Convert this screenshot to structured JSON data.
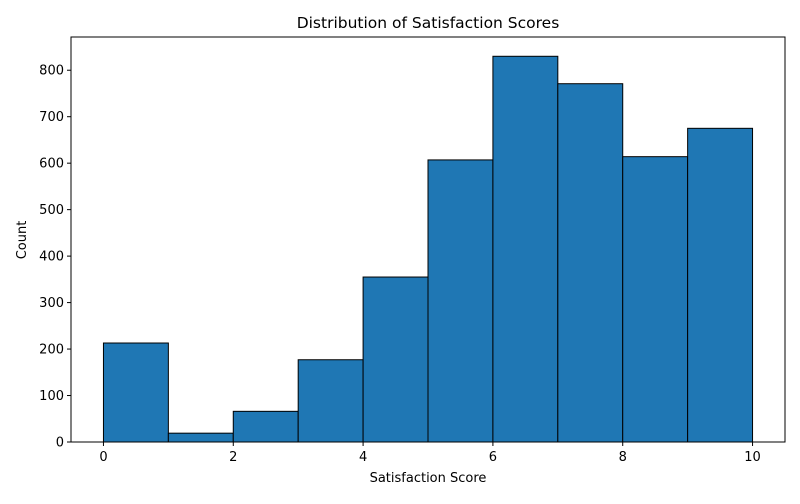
{
  "chart_data": {
    "type": "bar",
    "title": "Distribution of Satisfaction Scores",
    "xlabel": "Satisfaction Score",
    "ylabel": "Count",
    "bins": [
      {
        "start": 0,
        "end": 1,
        "count": 213
      },
      {
        "start": 1,
        "end": 2,
        "count": 19
      },
      {
        "start": 2,
        "end": 3,
        "count": 66
      },
      {
        "start": 3,
        "end": 4,
        "count": 177
      },
      {
        "start": 4,
        "end": 5,
        "count": 355
      },
      {
        "start": 5,
        "end": 6,
        "count": 607
      },
      {
        "start": 6,
        "end": 7,
        "count": 830
      },
      {
        "start": 7,
        "end": 8,
        "count": 771
      },
      {
        "start": 8,
        "end": 9,
        "count": 614
      },
      {
        "start": 9,
        "end": 10,
        "count": 675
      }
    ],
    "xlim": [
      -0.5,
      10.5
    ],
    "ylim": [
      0,
      871.5
    ],
    "xticks": [
      0,
      2,
      4,
      6,
      8,
      10
    ],
    "yticks": [
      0,
      100,
      200,
      300,
      400,
      500,
      600,
      700,
      800
    ],
    "bar_color": "#1f77b4",
    "edge_color": "#000000",
    "grid": false,
    "legend": "none"
  }
}
